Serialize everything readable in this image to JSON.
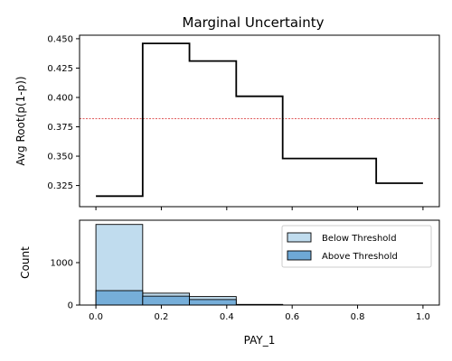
{
  "chart_data": [
    {
      "type": "line",
      "title": "Marginal Uncertainty",
      "xlabel": "",
      "ylabel": "Avg Root(p(1-p))",
      "drawstyle": "steps-post",
      "x": [
        0.0,
        0.143,
        0.286,
        0.429,
        0.571,
        0.714,
        0.857,
        1.0
      ],
      "y": [
        0.316,
        0.446,
        0.431,
        0.401,
        0.348,
        0.348,
        0.327,
        0.327
      ],
      "threshold_line": {
        "y": 0.382,
        "color": "#d62728",
        "style": "dashed"
      },
      "line_color": "#000000",
      "xlim": [
        -0.05,
        1.05
      ],
      "ylim": [
        0.307,
        0.453
      ],
      "yticks": [
        0.325,
        0.35,
        0.375,
        0.4,
        0.425,
        0.45
      ],
      "ytick_labels": [
        "0.325",
        "0.350",
        "0.375",
        "0.400",
        "0.425",
        "0.450"
      ],
      "grid": false
    },
    {
      "type": "bar",
      "stacked": false,
      "xlabel": "PAY_1",
      "ylabel": "Count",
      "bin_edges": [
        0.0,
        0.143,
        0.286,
        0.429,
        0.571,
        0.714,
        0.857,
        1.0
      ],
      "series": [
        {
          "name": "Below Threshold",
          "color": "#c0dcee",
          "values": [
            1900,
            280,
            200,
            15,
            0,
            0,
            0
          ]
        },
        {
          "name": "Above Threshold",
          "color": "#6ea8d6",
          "values": [
            340,
            210,
            130,
            10,
            0,
            0,
            0
          ]
        }
      ],
      "xlim": [
        -0.05,
        1.05
      ],
      "ylim": [
        0,
        2000
      ],
      "xticks": [
        0.0,
        0.2,
        0.4,
        0.6,
        0.8,
        1.0
      ],
      "xtick_labels": [
        "0.0",
        "0.2",
        "0.4",
        "0.6",
        "0.8",
        "1.0"
      ],
      "yticks": [
        0,
        1000
      ],
      "ytick_labels": [
        "0",
        "1000"
      ],
      "legend_position": "top-right",
      "grid": false
    }
  ]
}
